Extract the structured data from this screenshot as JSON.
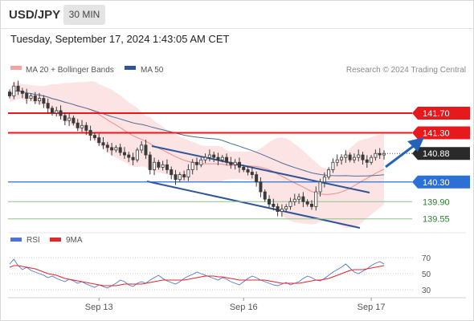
{
  "header": {
    "symbol": "USD/JPY",
    "timeframe": "30 MIN",
    "datetime": "Tuesday, September 17, 2024 1:43:05 AM CET"
  },
  "legend": {
    "ma20_bb": "MA 20 + Bollinger Bands",
    "ma50": "MA 50",
    "copyright": "Research © 2024 Trading Central",
    "rsi": "RSI",
    "ma9": "9MA"
  },
  "colors": {
    "resistance": "#e8191c",
    "support": "#2c6fd6",
    "current_price": "#2a2a2a",
    "bollinger_fill": "#fde3e3",
    "ma20": "#f08c8c",
    "ma50": "#4d6e9a",
    "channel": "#2f5597",
    "candle": "#3a3a3a",
    "rsi": "#4f73d9",
    "rsi_ma": "#e3262a",
    "arrow": "#2563b8",
    "target_green": "#2e7d32"
  },
  "chart_data": [
    {
      "type": "candlestick",
      "title": "USD/JPY",
      "x_tick_labels": [
        "Sep 13",
        "Sep 16",
        "Sep 17"
      ],
      "ylim": [
        139.35,
        142.45
      ],
      "price_levels": [
        {
          "label": "141.70",
          "value": 141.7,
          "kind": "resistance"
        },
        {
          "label": "141.30",
          "value": 141.3,
          "kind": "resistance"
        },
        {
          "label": "140.88",
          "value": 140.88,
          "kind": "current"
        },
        {
          "label": "140.30",
          "value": 140.3,
          "kind": "pivot"
        },
        {
          "label": "139.90",
          "value": 139.9,
          "kind": "support"
        },
        {
          "label": "139.55",
          "value": 139.55,
          "kind": "support"
        }
      ],
      "series": [
        {
          "name": "MA 20 + Bollinger Bands"
        },
        {
          "name": "MA 50"
        }
      ],
      "close": [
        142.05,
        142.25,
        142.15,
        142.1,
        142.0,
        142.05,
        141.95,
        142.0,
        141.9,
        141.8,
        141.7,
        141.75,
        141.65,
        141.55,
        141.6,
        141.5,
        141.4,
        141.45,
        141.35,
        141.25,
        141.2,
        141.1,
        141.05,
        141.0,
        140.95,
        141.0,
        140.9,
        140.85,
        140.8,
        140.75,
        140.95,
        141.05,
        140.85,
        140.55,
        140.7,
        140.6,
        140.65,
        140.55,
        140.45,
        140.35,
        140.45,
        140.4,
        140.55,
        140.7,
        140.65,
        140.75,
        140.8,
        140.85,
        140.8,
        140.75,
        140.8,
        140.7,
        140.65,
        140.7,
        140.6,
        140.55,
        140.5,
        140.45,
        140.3,
        140.1,
        139.95,
        139.85,
        139.8,
        139.7,
        139.75,
        139.8,
        139.9,
        139.95,
        140.0,
        139.9,
        139.85,
        139.8,
        140.1,
        140.3,
        140.4,
        140.55,
        140.7,
        140.75,
        140.8,
        140.85,
        140.75,
        140.8,
        140.85,
        140.75,
        140.7,
        140.8,
        140.88,
        140.85,
        140.88
      ]
    },
    {
      "type": "line",
      "title": "RSI",
      "ylim": [
        25,
        75
      ],
      "y_ticks": [
        30,
        50,
        70
      ],
      "series": [
        {
          "name": "RSI",
          "values": [
            62,
            68,
            60,
            55,
            58,
            54,
            52,
            50,
            48,
            45,
            47,
            44,
            42,
            40,
            43,
            41,
            38,
            40,
            37,
            35,
            33,
            36,
            34,
            32,
            35,
            38,
            42,
            40,
            36,
            34,
            38,
            40,
            38,
            42,
            45,
            48,
            44,
            41,
            39,
            37,
            40,
            44,
            47,
            49,
            52,
            50,
            48,
            46,
            44,
            42,
            45,
            43,
            40,
            38,
            36,
            40,
            44,
            47,
            45,
            42,
            40,
            38,
            36,
            35,
            37,
            39,
            36,
            38,
            40,
            44,
            47,
            45,
            42,
            41,
            44,
            48,
            52,
            55,
            58,
            62,
            57,
            52,
            50,
            53,
            56,
            60,
            63,
            65,
            62
          ]
        },
        {
          "name": "9MA",
          "values": [
            58,
            60,
            60,
            59,
            58,
            57,
            56,
            54,
            52,
            50,
            49,
            48,
            46,
            44,
            43,
            42,
            41,
            40,
            39,
            38,
            37,
            36,
            35,
            35,
            35,
            35,
            36,
            37,
            37,
            37,
            37,
            37,
            38,
            39,
            40,
            41,
            42,
            42,
            42,
            42,
            42,
            42,
            43,
            44,
            45,
            46,
            47,
            47,
            47,
            46,
            46,
            45,
            44,
            43,
            42,
            42,
            42,
            42,
            42,
            42,
            42,
            41,
            40,
            39,
            38,
            38,
            38,
            38,
            38,
            39,
            40,
            41,
            42,
            42,
            43,
            44,
            46,
            48,
            50,
            52,
            54,
            55,
            55,
            55,
            56,
            57,
            58,
            59,
            60
          ]
        }
      ]
    }
  ]
}
